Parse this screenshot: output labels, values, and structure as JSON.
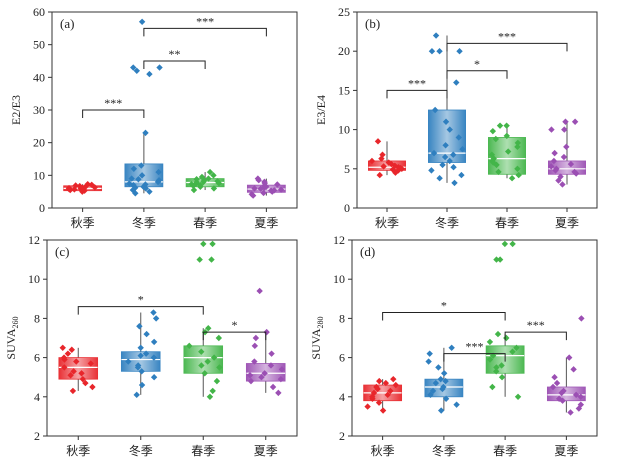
{
  "colors": {
    "autumn": "#e8262b",
    "winter": "#2f7fbf",
    "spring": "#43b549",
    "summer": "#9b4fb3",
    "axis": "#333333",
    "box_edge": "#555555"
  },
  "chart_data": [
    {
      "type": "box",
      "panel": "(a)",
      "ylabel": "E2/E3",
      "categories": [
        "秋季",
        "冬季",
        "春季",
        "夏季"
      ],
      "ylim": [
        0,
        60
      ],
      "yticks": [
        0,
        10,
        20,
        30,
        40,
        50,
        60
      ],
      "boxes": [
        {
          "q1": 5.3,
          "median": 6.0,
          "q3": 6.8,
          "whisker_low": 5.0,
          "whisker_high": 7.3,
          "points": [
            5.0,
            5.3,
            5.5,
            5.7,
            5.9,
            6.0,
            6.1,
            6.3,
            6.5,
            6.7,
            6.9,
            7.1,
            7.3,
            5.8,
            6.2
          ]
        },
        {
          "q1": 6.5,
          "median": 8.0,
          "q3": 13.5,
          "whisker_low": 4.5,
          "whisker_high": 23,
          "points": [
            4.5,
            5,
            5.5,
            6,
            6.5,
            7,
            7.5,
            8,
            8.5,
            9,
            10,
            11,
            12,
            13,
            23,
            41,
            42,
            43,
            43,
            57,
            6.2,
            7.2,
            8.8
          ]
        },
        {
          "q1": 6.5,
          "median": 7.8,
          "q3": 9.0,
          "whisker_low": 5.5,
          "whisker_high": 11,
          "points": [
            5.5,
            6,
            6.5,
            7,
            7.3,
            7.6,
            7.9,
            8.2,
            8.5,
            8.8,
            9,
            9.5,
            10,
            11,
            6.8,
            7.5,
            8.0
          ]
        },
        {
          "q1": 4.8,
          "median": 5.8,
          "q3": 7.0,
          "whisker_low": 3.8,
          "whisker_high": 9,
          "points": [
            3.8,
            4.2,
            4.6,
            5,
            5.3,
            5.6,
            5.9,
            6.2,
            6.5,
            6.8,
            7.2,
            7.6,
            8,
            8.5,
            9,
            5.4,
            6.0
          ]
        }
      ],
      "significance": [
        {
          "from": 0,
          "to": 1,
          "y": 30,
          "label": "***"
        },
        {
          "from": 1,
          "to": 2,
          "y": 45,
          "label": "**"
        },
        {
          "from": 1,
          "to": 3,
          "y": 55,
          "label": "***"
        }
      ]
    },
    {
      "type": "box",
      "panel": "(b)",
      "ylabel": "E3/E4",
      "categories": [
        "秋季",
        "冬季",
        "春季",
        "夏季"
      ],
      "ylim": [
        0,
        25
      ],
      "yticks": [
        0,
        5,
        10,
        15,
        20,
        25
      ],
      "boxes": [
        {
          "q1": 4.8,
          "median": 5.2,
          "q3": 6.0,
          "whisker_low": 4.2,
          "whisker_high": 8.5,
          "points": [
            4.2,
            4.5,
            4.8,
            5,
            5.1,
            5.2,
            5.4,
            5.6,
            5.8,
            6,
            6.3,
            6.8,
            8.5,
            5.3,
            4.9
          ]
        },
        {
          "q1": 5.8,
          "median": 7.0,
          "q3": 12.5,
          "whisker_low": 3.2,
          "whisker_high": 22,
          "points": [
            3.2,
            3.8,
            4.2,
            4.8,
            5.5,
            6,
            6.5,
            7,
            7.5,
            8,
            9,
            10,
            11,
            12.5,
            16,
            20,
            20,
            20,
            22,
            5.2,
            6.8
          ]
        },
        {
          "q1": 4.3,
          "median": 6.3,
          "q3": 9.0,
          "whisker_low": 3.8,
          "whisker_high": 10.5,
          "points": [
            3.8,
            4.2,
            4.6,
            5,
            5.5,
            6,
            6.3,
            6.8,
            7.2,
            7.8,
            8.3,
            8.8,
            9.2,
            9.8,
            10.5,
            10.5,
            5.8
          ]
        },
        {
          "q1": 4.3,
          "median": 5.0,
          "q3": 6.0,
          "whisker_low": 3.0,
          "whisker_high": 11,
          "points": [
            3,
            3.5,
            4,
            4.4,
            4.8,
            5,
            5.3,
            5.6,
            6,
            6.5,
            7,
            7.8,
            10,
            10,
            11,
            11,
            4.6
          ]
        }
      ],
      "significance": [
        {
          "from": 0,
          "to": 1,
          "y": 15,
          "label": "***"
        },
        {
          "from": 1,
          "to": 2,
          "y": 17.5,
          "label": "*"
        },
        {
          "from": 1,
          "to": 3,
          "y": 21,
          "label": "***"
        }
      ]
    },
    {
      "type": "box",
      "panel": "(c)",
      "ylabel": "SUVA",
      "ylabel_sub": "260",
      "categories": [
        "秋季",
        "冬季",
        "春季",
        "夏季"
      ],
      "ylim": [
        2,
        12
      ],
      "yticks": [
        2,
        4,
        6,
        8,
        10,
        12
      ],
      "boxes": [
        {
          "q1": 4.9,
          "median": 5.5,
          "q3": 6.0,
          "whisker_low": 4.3,
          "whisker_high": 6.5,
          "points": [
            4.3,
            4.5,
            4.7,
            4.9,
            5.1,
            5.3,
            5.5,
            5.7,
            5.9,
            6,
            6.2,
            6.4,
            6.5,
            5.2,
            5.8
          ]
        },
        {
          "q1": 5.3,
          "median": 5.9,
          "q3": 6.3,
          "whisker_low": 4.1,
          "whisker_high": 8.3,
          "points": [
            4.1,
            4.6,
            5,
            5.3,
            5.6,
            5.8,
            6,
            6.2,
            6.5,
            6.8,
            7.2,
            7.6,
            8,
            8.3,
            5.5,
            6.1
          ]
        },
        {
          "q1": 5.2,
          "median": 6.0,
          "q3": 6.6,
          "whisker_low": 4.0,
          "whisker_high": 7.5,
          "points": [
            4,
            4.3,
            4.8,
            5.2,
            5.5,
            5.8,
            6,
            6.3,
            6.6,
            7,
            7.3,
            7.5,
            11,
            11,
            11.8,
            11.8,
            5.6
          ]
        },
        {
          "q1": 4.8,
          "median": 5.2,
          "q3": 5.7,
          "whisker_low": 4.2,
          "whisker_high": 7.3,
          "points": [
            4.2,
            4.5,
            4.8,
            5,
            5.2,
            5.4,
            5.6,
            5.8,
            6.2,
            6.6,
            7,
            7.3,
            9.4,
            5.1,
            4.9
          ]
        }
      ],
      "significance": [
        {
          "from": 0,
          "to": 2,
          "y": 8.6,
          "label": "*"
        },
        {
          "from": 2,
          "to": 3,
          "y": 7.3,
          "label": "*"
        }
      ]
    },
    {
      "type": "box",
      "panel": "(d)",
      "ylabel": "SUVA",
      "ylabel_sub": "280",
      "categories": [
        "秋季",
        "冬季",
        "春季",
        "夏季"
      ],
      "ylim": [
        2,
        12
      ],
      "yticks": [
        2,
        4,
        6,
        8,
        10,
        12
      ],
      "boxes": [
        {
          "q1": 3.8,
          "median": 4.2,
          "q3": 4.6,
          "whisker_low": 3.3,
          "whisker_high": 4.9,
          "points": [
            3.3,
            3.5,
            3.7,
            3.9,
            4.1,
            4.2,
            4.3,
            4.5,
            4.6,
            4.7,
            4.8,
            4.9,
            4,
            4.4
          ]
        },
        {
          "q1": 4.0,
          "median": 4.5,
          "q3": 4.9,
          "whisker_low": 3.3,
          "whisker_high": 6.5,
          "points": [
            3.3,
            3.6,
            3.9,
            4.1,
            4.3,
            4.5,
            4.7,
            4.9,
            5.2,
            5.5,
            5.8,
            6.2,
            6.5,
            4.4,
            4.8
          ]
        },
        {
          "q1": 5.2,
          "median": 6.1,
          "q3": 6.6,
          "whisker_low": 4.0,
          "whisker_high": 7.2,
          "points": [
            4,
            4.5,
            5,
            5.3,
            5.6,
            5.9,
            6.1,
            6.3,
            6.5,
            6.8,
            7,
            7.2,
            11,
            11,
            11.8,
            11.8,
            5.5
          ]
        },
        {
          "q1": 3.8,
          "median": 4.1,
          "q3": 4.5,
          "whisker_low": 3.2,
          "whisker_high": 6.0,
          "points": [
            3.2,
            3.4,
            3.6,
            3.8,
            4,
            4.1,
            4.3,
            4.5,
            4.7,
            5,
            5.4,
            6,
            8,
            3.9,
            4.2
          ]
        }
      ],
      "significance": [
        {
          "from": 0,
          "to": 2,
          "y": 8.3,
          "label": "*"
        },
        {
          "from": 1,
          "to": 2,
          "y": 6.2,
          "label": "***"
        },
        {
          "from": 2,
          "to": 3,
          "y": 7.3,
          "label": "***"
        }
      ]
    }
  ]
}
